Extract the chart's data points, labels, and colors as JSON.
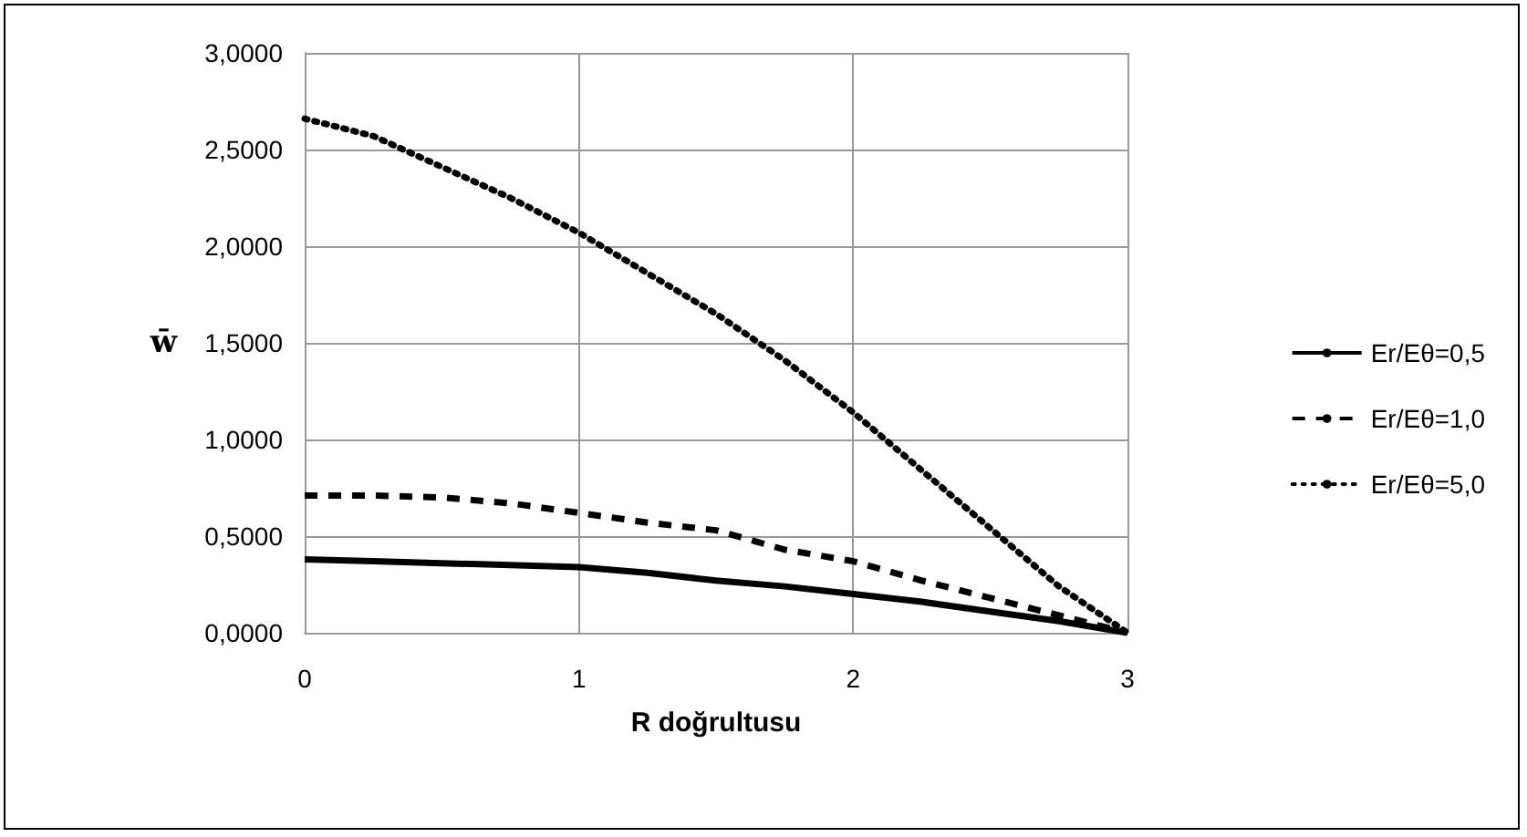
{
  "chart_data": {
    "type": "line",
    "xlabel": "R doğrultusu",
    "ylabel": "w̄",
    "x": [
      0,
      0.25,
      0.5,
      0.75,
      1,
      1.25,
      1.5,
      1.75,
      2,
      2.25,
      2.5,
      2.75,
      3
    ],
    "series": [
      {
        "name": "Er/Eθ=0,5",
        "color": "#000000",
        "line_style": "solid",
        "values": [
          0.38,
          0.37,
          0.36,
          0.35,
          0.34,
          0.31,
          0.27,
          0.24,
          0.2,
          0.16,
          0.11,
          0.06,
          0
        ]
      },
      {
        "name": "Er/Eθ=1,0",
        "color": "#000000",
        "line_style": "dashed",
        "values": [
          0.71,
          0.71,
          0.7,
          0.67,
          0.62,
          0.57,
          0.53,
          0.43,
          0.37,
          0.27,
          0.18,
          0.09,
          0
        ]
      },
      {
        "name": "Er/Eθ=5,0",
        "color": "#000000",
        "line_style": "dotted",
        "values": [
          2.66,
          2.57,
          2.41,
          2.25,
          2.07,
          1.86,
          1.65,
          1.41,
          1.14,
          0.84,
          0.54,
          0.24,
          0
        ]
      }
    ],
    "xlim": [
      0,
      3
    ],
    "xticks": [
      0,
      1,
      2,
      3
    ],
    "ylim": [
      0,
      3
    ],
    "yticks": [
      {
        "value": 0,
        "label": "0,0000"
      },
      {
        "value": 0.5,
        "label": "0,5000"
      },
      {
        "value": 1,
        "label": "1,0000"
      },
      {
        "value": 1.5,
        "label": "1,5000"
      },
      {
        "value": 2,
        "label": "2,0000"
      },
      {
        "value": 2.5,
        "label": "2,5000"
      },
      {
        "value": 3,
        "label": "3,0000"
      }
    ],
    "grid": true,
    "legend": "right",
    "marker": "none"
  }
}
